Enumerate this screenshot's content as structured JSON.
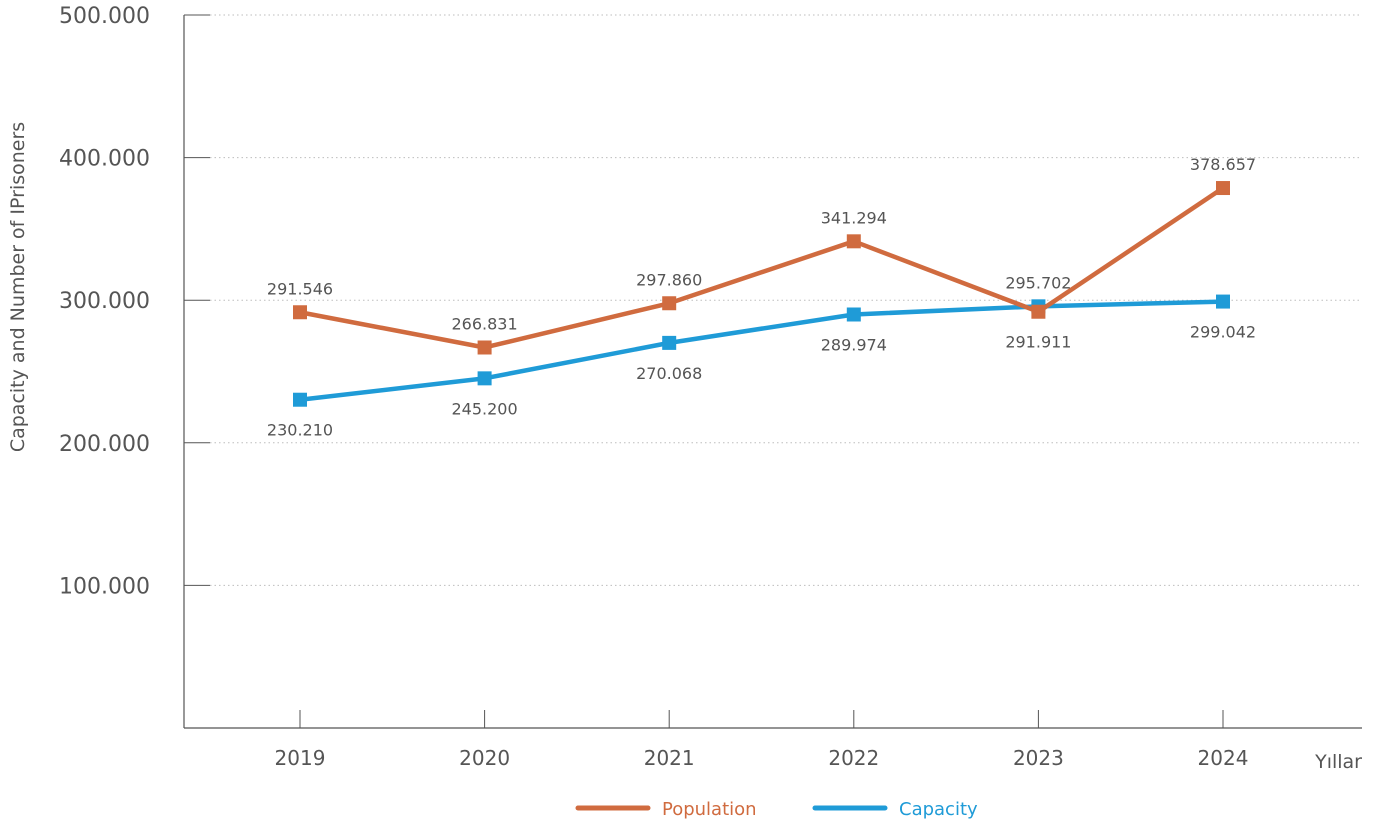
{
  "chart_data": {
    "type": "line",
    "categories": [
      "2019",
      "2020",
      "2021",
      "2022",
      "2023",
      "2024"
    ],
    "ylabel": "Capacity and Number of IPrisoners",
    "xlabel": "Yıllar",
    "ylim": [
      0,
      500000
    ],
    "yticks": [
      100000,
      200000,
      300000,
      400000,
      500000
    ],
    "ytick_labels": [
      "100.000",
      "200.000",
      "300.000",
      "400.000",
      "500.000"
    ],
    "grid": "horizontal dotted",
    "legend_position": "bottom",
    "series": [
      {
        "name": "Population",
        "color": "#d06b3f",
        "values": [
          291546,
          266831,
          297860,
          341294,
          291911,
          378657
        ],
        "labels": [
          "291.546",
          "266.831",
          "297.860",
          "341.294",
          "291.911",
          "378.657"
        ],
        "label_positions": [
          "above",
          "above",
          "above",
          "above",
          "below",
          "above"
        ]
      },
      {
        "name": "Capacity",
        "color": "#1f9bd7",
        "values": [
          230210,
          245200,
          270068,
          289974,
          295702,
          299042
        ],
        "labels": [
          "230.210",
          "245.200",
          "270.068",
          "289.974",
          "295.702",
          "299.042"
        ],
        "label_positions": [
          "below",
          "below",
          "below",
          "below",
          "above",
          "below"
        ]
      }
    ]
  }
}
